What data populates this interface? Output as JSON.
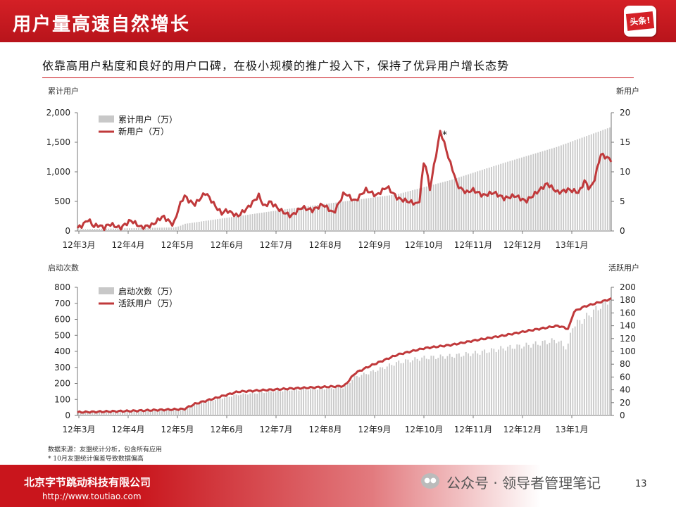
{
  "header": {
    "title": "用户量高速自然增长",
    "logo_text": "头条!"
  },
  "subtitle": "依靠高用户粘度和良好的用户口碑，在极小规模的推广投入下，保持了优异用户增长态势",
  "colors": {
    "accent": "#c9151c",
    "bar": "#c8c8c8",
    "line": "#c0393b",
    "header_bg": "#d42026"
  },
  "chart_data": [
    {
      "type": "bar+line",
      "left_axis_label": "累计用户",
      "right_axis_label": "新用户",
      "left_ylim": [
        0,
        2000
      ],
      "left_ticks": [
        "0",
        "500",
        "1,000",
        "1,500",
        "2,000"
      ],
      "right_ylim": [
        0,
        20
      ],
      "right_ticks": [
        "0",
        "5",
        "10",
        "15",
        "20"
      ],
      "x_tick_labels": [
        "12年3月",
        "12年4月",
        "12年5月",
        "12年6月",
        "12年7月",
        "12年8月",
        "12年9月",
        "12年10月",
        "12年11月",
        "12年12月",
        "13年1月"
      ],
      "legend": [
        "累计用户（万）",
        "新用户（万）"
      ],
      "annotation": "*",
      "bar_series": {
        "name": "累计用户（万）",
        "t": [
          0,
          0.18,
          0.19,
          0.2,
          0.4,
          0.6,
          0.7,
          0.8,
          0.9,
          1.0
        ],
        "v": [
          30,
          60,
          80,
          120,
          380,
          620,
          860,
          1150,
          1420,
          1750
        ]
      },
      "line_series": {
        "name": "新用户（万）",
        "t": [
          0,
          0.01,
          0.02,
          0.03,
          0.04,
          0.05,
          0.06,
          0.08,
          0.1,
          0.12,
          0.14,
          0.16,
          0.18,
          0.19,
          0.2,
          0.21,
          0.22,
          0.24,
          0.26,
          0.27,
          0.28,
          0.3,
          0.32,
          0.34,
          0.35,
          0.36,
          0.38,
          0.4,
          0.42,
          0.44,
          0.46,
          0.48,
          0.5,
          0.52,
          0.54,
          0.56,
          0.58,
          0.6,
          0.62,
          0.64,
          0.65,
          0.66,
          0.68,
          0.7,
          0.705,
          0.71,
          0.72,
          0.73,
          0.74,
          0.76,
          0.78,
          0.8,
          0.82,
          0.84,
          0.86,
          0.88,
          0.9,
          0.92,
          0.94,
          0.95,
          0.96,
          0.97,
          0.98,
          0.99,
          1.0
        ],
        "v": [
          0.5,
          1.0,
          2.0,
          0.8,
          1.0,
          0.5,
          1.2,
          0.5,
          1.8,
          0.6,
          1.0,
          2.5,
          1.0,
          4.0,
          6.0,
          5.0,
          4.5,
          6.5,
          4.0,
          3.0,
          3.5,
          2.5,
          4.0,
          6.0,
          4.0,
          5.0,
          3.5,
          2.5,
          4.0,
          3.5,
          4.5,
          3.0,
          6.5,
          5.0,
          7.0,
          6.0,
          7.5,
          5.5,
          5.0,
          4.5,
          12.5,
          7.0,
          17.0,
          11.0,
          10.0,
          8.0,
          7.0,
          6.5,
          7.0,
          6.0,
          6.5,
          5.5,
          6.0,
          5.0,
          6.5,
          8.0,
          6.5,
          7.0,
          6.5,
          8.5,
          7.0,
          9.0,
          13.0,
          12.5,
          12.0
        ]
      }
    },
    {
      "type": "bar+line",
      "left_axis_label": "启动次数",
      "right_axis_label": "活跃用户",
      "left_ylim": [
        0,
        800
      ],
      "left_ticks": [
        "0",
        "100",
        "200",
        "300",
        "400",
        "500",
        "600",
        "700",
        "800"
      ],
      "right_ylim": [
        0,
        200
      ],
      "right_ticks": [
        "0",
        "20",
        "40",
        "60",
        "80",
        "100",
        "120",
        "140",
        "160",
        "180",
        "200"
      ],
      "x_tick_labels": [
        "12年3月",
        "12年4月",
        "12年5月",
        "12年6月",
        "12年7月",
        "12年8月",
        "12年9月",
        "12年10月",
        "12年11月",
        "12年12月",
        "13年1月"
      ],
      "legend": [
        "启动次数（万）",
        "活跃用户（万）"
      ],
      "bar_series": {
        "name": "启动次数（万）",
        "t": [
          0,
          0.1,
          0.2,
          0.22,
          0.3,
          0.4,
          0.45,
          0.5,
          0.52,
          0.55,
          0.6,
          0.65,
          0.7,
          0.75,
          0.8,
          0.85,
          0.9,
          0.92,
          0.93,
          0.95,
          1.0
        ],
        "v": [
          20,
          25,
          35,
          70,
          130,
          160,
          165,
          175,
          240,
          270,
          330,
          360,
          370,
          390,
          420,
          440,
          470,
          420,
          560,
          600,
          730
        ]
      },
      "line_series": {
        "name": "活跃用户（万）",
        "t": [
          0,
          0.1,
          0.2,
          0.22,
          0.3,
          0.4,
          0.45,
          0.5,
          0.52,
          0.55,
          0.6,
          0.65,
          0.7,
          0.75,
          0.8,
          0.85,
          0.9,
          0.92,
          0.93,
          0.95,
          1.0
        ],
        "v": [
          5,
          7,
          10,
          18,
          37,
          42,
          44,
          46,
          66,
          78,
          95,
          105,
          110,
          118,
          125,
          133,
          140,
          135,
          162,
          170,
          182
        ]
      }
    }
  ],
  "notes": {
    "source": "数据来源：友盟统计分析，包含所有应用",
    "footnote": "* 10月友盟统计偏差导致数据偏高"
  },
  "footer": {
    "company": "北京字节跳动科技有限公司",
    "website": "http://www.toutiao.com",
    "page_number": "13",
    "watermark": "公众号 · 领导者管理笔记"
  }
}
